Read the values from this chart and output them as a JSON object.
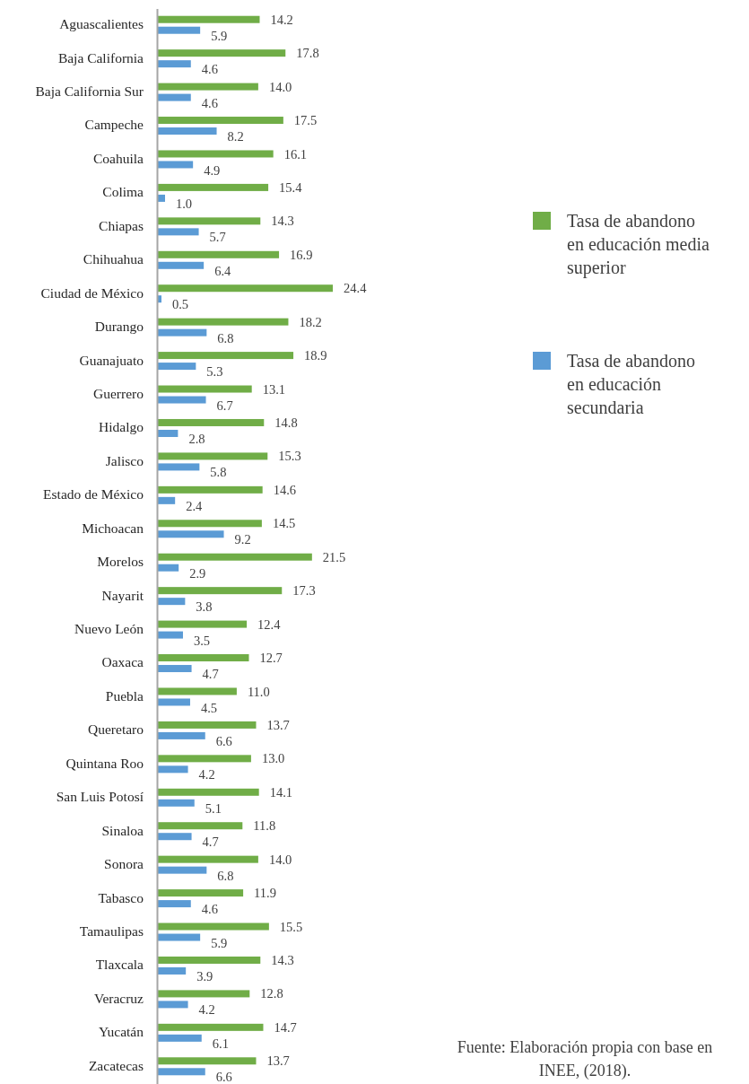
{
  "chart_data": {
    "type": "bar",
    "orientation": "horizontal",
    "categories": [
      "Aguascalientes",
      "Baja California",
      "Baja California Sur",
      "Campeche",
      "Coahuila",
      "Colima",
      "Chiapas",
      "Chihuahua",
      "Ciudad de México",
      "Durango",
      "Guanajuato",
      "Guerrero",
      "Hidalgo",
      "Jalisco",
      "Estado de México",
      "Michoacan",
      "Morelos",
      "Nayarit",
      "Nuevo León",
      "Oaxaca",
      "Puebla",
      "Queretaro",
      "Quintana Roo",
      "San Luis Potosí",
      "Sinaloa",
      "Sonora",
      "Tabasco",
      "Tamaulipas",
      "Tlaxcala",
      "Veracruz",
      "Yucatán",
      "Zacatecas"
    ],
    "series": [
      {
        "name": "Tasa de abandono en educación media superior",
        "color": "#70ad47",
        "values": [
          14.2,
          17.8,
          14.0,
          17.5,
          16.1,
          15.4,
          14.3,
          16.9,
          24.4,
          18.2,
          18.9,
          13.1,
          14.8,
          15.3,
          14.6,
          14.5,
          21.5,
          17.3,
          12.4,
          12.7,
          11.0,
          13.7,
          13.0,
          14.1,
          11.8,
          14.0,
          11.9,
          15.5,
          14.3,
          12.8,
          14.7,
          13.7
        ],
        "value_labels": [
          "14.2",
          "17.8",
          "14.0",
          "17.5",
          "16.1",
          "15.4",
          "14.3",
          "16.9",
          "24.4",
          "18.2",
          "18.9",
          "13.1",
          "14.8",
          "15.3",
          "14.6",
          "14.5",
          "21.5",
          "17.3",
          "12.4",
          "12.7",
          "11.0",
          "13.7",
          "13.0",
          "14.1",
          "11.8",
          "14.0",
          "11.9",
          "15.5",
          "14.3",
          "12.8",
          "14.7",
          "13.7"
        ]
      },
      {
        "name": "Tasa de abandono en educación secundaria",
        "color": "#5b9bd5",
        "values": [
          5.9,
          4.6,
          4.6,
          8.2,
          4.9,
          1.0,
          5.7,
          6.4,
          0.5,
          6.8,
          5.3,
          6.7,
          2.8,
          5.8,
          2.4,
          9.2,
          2.9,
          3.8,
          3.5,
          4.7,
          4.5,
          6.6,
          4.2,
          5.1,
          4.7,
          6.8,
          4.6,
          5.9,
          3.9,
          4.2,
          6.1,
          6.6
        ],
        "value_labels": [
          "5.9",
          "4.6",
          "4.6",
          "8.2",
          "4.9",
          "1.0",
          "5.7",
          "6.4",
          "0.5",
          "6.8",
          "5.3",
          "6.7",
          "2.8",
          "5.8",
          "2.4",
          "9.2",
          "2.9",
          "3.8",
          "3.5",
          "4.7",
          "4.5",
          "6.6",
          "4.2",
          "5.1",
          "4.7",
          "6.8",
          "4.6",
          "5.9",
          "3.9",
          "4.2",
          "6.1",
          "6.6"
        ]
      }
    ],
    "legend": "right",
    "annotations": [
      "Fuente: Elaboración propia con base en INEE, (2018)."
    ]
  }
}
